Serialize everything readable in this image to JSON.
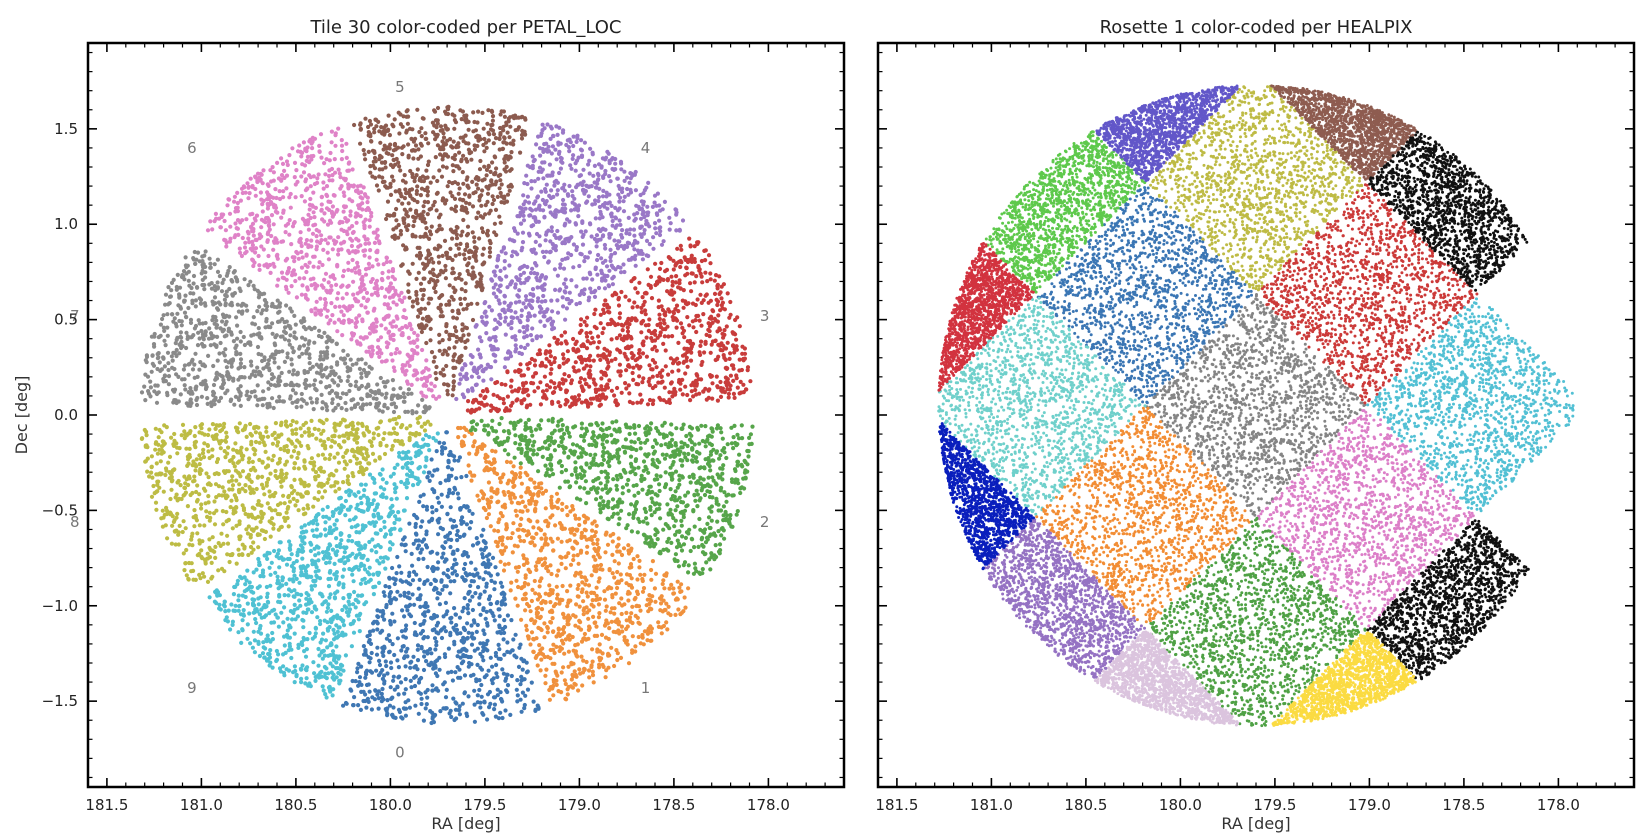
{
  "chart_data": [
    {
      "type": "scatter",
      "title": "Tile 30 color-coded per PETAL_LOC",
      "xlabel": "RA [deg]",
      "ylabel": "Dec [deg]",
      "xlim": [
        181.6,
        177.6
      ],
      "ylim": [
        -1.95,
        1.95
      ],
      "x_inverted": true,
      "xticks": [
        181.5,
        181.0,
        180.5,
        180.0,
        179.5,
        179.0,
        178.5,
        178.0
      ],
      "xtick_labels": [
        "181.5",
        "181.0",
        "180.5",
        "180.0",
        "179.5",
        "179.0",
        "178.5",
        "178.0"
      ],
      "yticks": [
        1.5,
        1.0,
        0.5,
        0.0,
        -0.5,
        -1.0,
        -1.5
      ],
      "ytick_labels": [
        "1.5",
        "1.0",
        "0.5",
        "0.0",
        "−0.5",
        "−1.0",
        "−1.5"
      ],
      "center": [
        179.7,
        0.0
      ],
      "series": [
        {
          "name": "0",
          "color": "#3f77b3",
          "angle_min": 250,
          "angle_max": 288,
          "r_max": 1.62
        },
        {
          "name": "1",
          "color": "#f0913d",
          "angle_min": 290,
          "angle_max": 325,
          "r_max": 1.62
        },
        {
          "name": "2",
          "color": "#56a54a",
          "angle_min": 327,
          "angle_max": 358,
          "r_max": 1.62
        },
        {
          "name": "3",
          "color": "#c83c3b",
          "angle_min": 3,
          "angle_max": 36,
          "r_max": 1.62
        },
        {
          "name": "4",
          "color": "#9a78c7",
          "angle_min": 38,
          "angle_max": 72,
          "r_max": 1.62
        },
        {
          "name": "5",
          "color": "#8c5b4f",
          "angle_min": 74,
          "angle_max": 108,
          "r_max": 1.62
        },
        {
          "name": "6",
          "color": "#df82c7",
          "angle_min": 110,
          "angle_max": 143,
          "r_max": 1.62
        },
        {
          "name": "7",
          "color": "#8a8a8a",
          "angle_min": 146,
          "angle_max": 178,
          "r_max": 1.62
        },
        {
          "name": "8",
          "color": "#bdbc44",
          "angle_min": 182,
          "angle_max": 215,
          "r_max": 1.62
        },
        {
          "name": "9",
          "color": "#4fc1d3",
          "angle_min": 217,
          "angle_max": 248,
          "r_max": 1.62
        }
      ],
      "annotations": [
        {
          "text": "0",
          "x": 179.95,
          "y": -1.77
        },
        {
          "text": "1",
          "x": 178.65,
          "y": -1.43
        },
        {
          "text": "2",
          "x": 178.02,
          "y": -0.56
        },
        {
          "text": "3",
          "x": 178.02,
          "y": 0.52
        },
        {
          "text": "4",
          "x": 178.65,
          "y": 1.4
        },
        {
          "text": "5",
          "x": 179.95,
          "y": 1.72
        },
        {
          "text": "6",
          "x": 181.05,
          "y": 1.4
        },
        {
          "text": "7",
          "x": 181.67,
          "y": 0.52
        },
        {
          "text": "8",
          "x": 181.67,
          "y": -0.56
        },
        {
          "text": "9",
          "x": 181.05,
          "y": -1.43
        }
      ]
    },
    {
      "type": "scatter",
      "title": "Rosette 1 color-coded per HEALPIX",
      "xlabel": "RA [deg]",
      "xlim": [
        181.6,
        177.6
      ],
      "ylim": [
        -1.95,
        1.95
      ],
      "x_inverted": true,
      "xticks": [
        181.5,
        181.0,
        180.5,
        180.0,
        179.5,
        179.0,
        178.5,
        178.0
      ],
      "xtick_labels": [
        "181.5",
        "181.0",
        "180.5",
        "180.0",
        "179.5",
        "179.0",
        "178.5",
        "178.0"
      ],
      "yticks": [
        1.5,
        1.0,
        0.5,
        0.0,
        -0.5,
        -1.0,
        -1.5
      ],
      "center": [
        179.6,
        0.05
      ],
      "disk_radius": 1.68,
      "grid_spacing": 0.585,
      "series": [
        {
          "name": "hp-grey",
          "color": "#858585",
          "cell": [
            0,
            0
          ]
        },
        {
          "name": "hp-olive",
          "color": "#bebb45",
          "cell": [
            0,
            2
          ]
        },
        {
          "name": "hp-blue",
          "color": "#3b76b4",
          "cell": [
            -1,
            1
          ]
        },
        {
          "name": "hp-red",
          "color": "#cc3a39",
          "cell": [
            1,
            1
          ]
        },
        {
          "name": "hp-cyan",
          "color": "#6fd0cb",
          "cell": [
            -2,
            0
          ]
        },
        {
          "name": "hp-orange",
          "color": "#f28d34",
          "cell": [
            -1,
            -1
          ]
        },
        {
          "name": "hp-pink",
          "color": "#dc7fc8",
          "cell": [
            1,
            -1
          ]
        },
        {
          "name": "hp-green",
          "color": "#4fa145",
          "cell": [
            0,
            -2
          ]
        },
        {
          "name": "hp-lightgreen",
          "color": "#5ec94c",
          "cell": [
            -2,
            2
          ]
        },
        {
          "name": "hp-skyblue",
          "color": "#52c0d4",
          "cell": [
            2,
            0
          ]
        },
        {
          "name": "hp-purple",
          "color": "#9572c3",
          "cell": [
            -2,
            -2
          ]
        },
        {
          "name": "hp-lavender",
          "color": "#dbc4de",
          "cell": [
            -1,
            -3
          ]
        },
        {
          "name": "hp-crimson",
          "color": "#d2333f",
          "cell": [
            -3,
            1
          ]
        },
        {
          "name": "hp-navy",
          "color": "#0a1fbd",
          "cell": [
            -3,
            -1
          ]
        },
        {
          "name": "hp-indigo",
          "color": "#6257c9",
          "cell": [
            -1,
            3
          ]
        },
        {
          "name": "hp-brown",
          "color": "#8e5c50",
          "cell": [
            1,
            3
          ]
        },
        {
          "name": "hp-black-top",
          "color": "#111111",
          "cell": [
            2,
            2
          ]
        },
        {
          "name": "hp-black-bottom",
          "color": "#111111",
          "cell": [
            2,
            -2
          ]
        },
        {
          "name": "hp-yellow",
          "color": "#fbdb42",
          "cell": [
            1,
            -3
          ]
        }
      ]
    }
  ]
}
